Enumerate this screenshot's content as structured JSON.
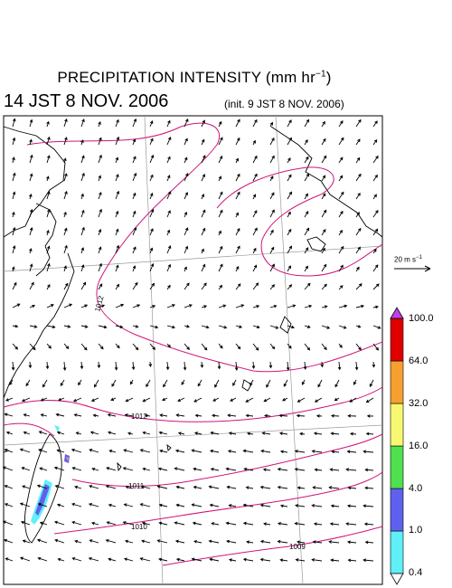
{
  "title": {
    "main": "PRECIPITATION INTENSITY (mm hr",
    "exponent": "−1",
    "close": ")",
    "valid_time": "14 JST 8 NOV. 2006",
    "init_time": "(init. 9 JST 8 NOV. 2006)"
  },
  "wind_scale": {
    "value": "20 m s",
    "exponent": "−1"
  },
  "colorbar": {
    "labels": [
      "100.0",
      "64.0",
      "32.0",
      "16.0",
      "4.0",
      "1.0",
      "0.4"
    ],
    "colors": [
      "#e00000",
      "#f7a030",
      "#f8f870",
      "#50e050",
      "#6060f0",
      "#60f0f8"
    ],
    "over_color": "#c040e8",
    "under_color": "#ffffff"
  },
  "isobars": {
    "labels": [
      "1012",
      "1012",
      "1011",
      "1010",
      "1009"
    ],
    "line_color": "#d0147a"
  },
  "map_colors": {
    "coast": "#000000",
    "grid": "#9a9a9a",
    "vector": "#000000"
  }
}
